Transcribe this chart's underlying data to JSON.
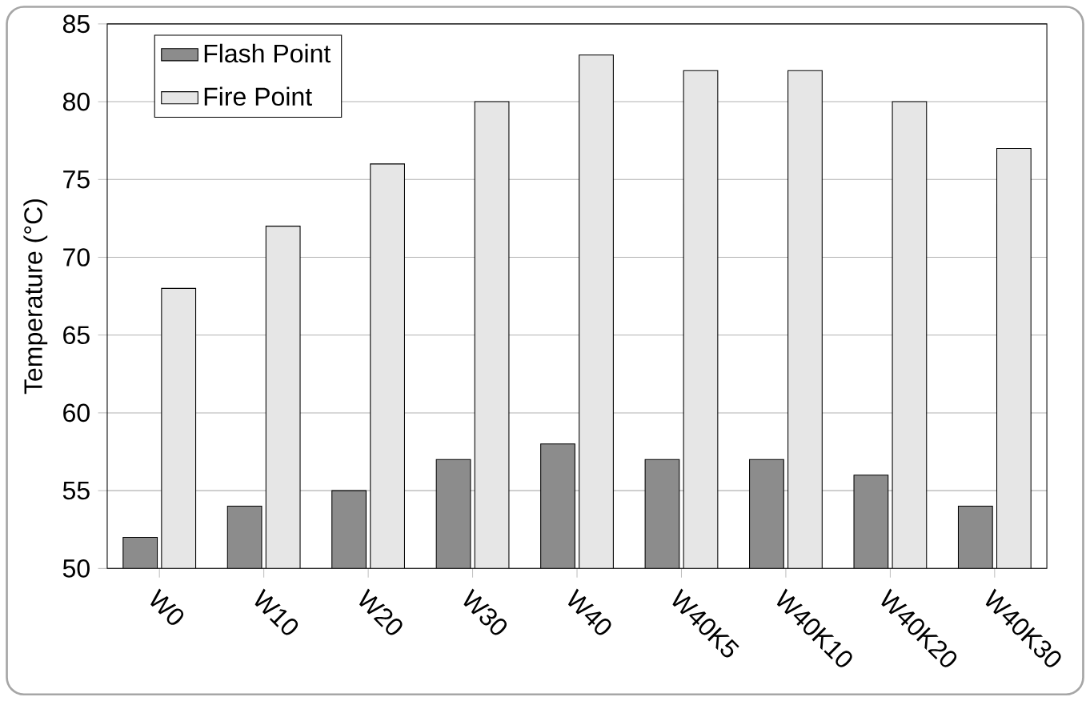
{
  "chart_data": {
    "type": "bar",
    "ylabel": "Temperature (°C)",
    "categories": [
      "W0",
      "W10",
      "W20",
      "W30",
      "W40",
      "W40K5",
      "W40K10",
      "W40K20",
      "W40K30"
    ],
    "series": [
      {
        "name": "Flash Point",
        "color": "#8c8c8c",
        "values": [
          52,
          54,
          55,
          57,
          58,
          57,
          57,
          56,
          54
        ]
      },
      {
        "name": "Fire Point",
        "color": "#e6e6e6",
        "values": [
          68,
          72,
          76,
          80,
          83,
          82,
          82,
          80,
          77
        ]
      }
    ],
    "ylim": [
      50,
      85
    ],
    "yticks": [
      50,
      55,
      60,
      65,
      70,
      75,
      80,
      85
    ],
    "grid": "y",
    "legend": "top left"
  }
}
